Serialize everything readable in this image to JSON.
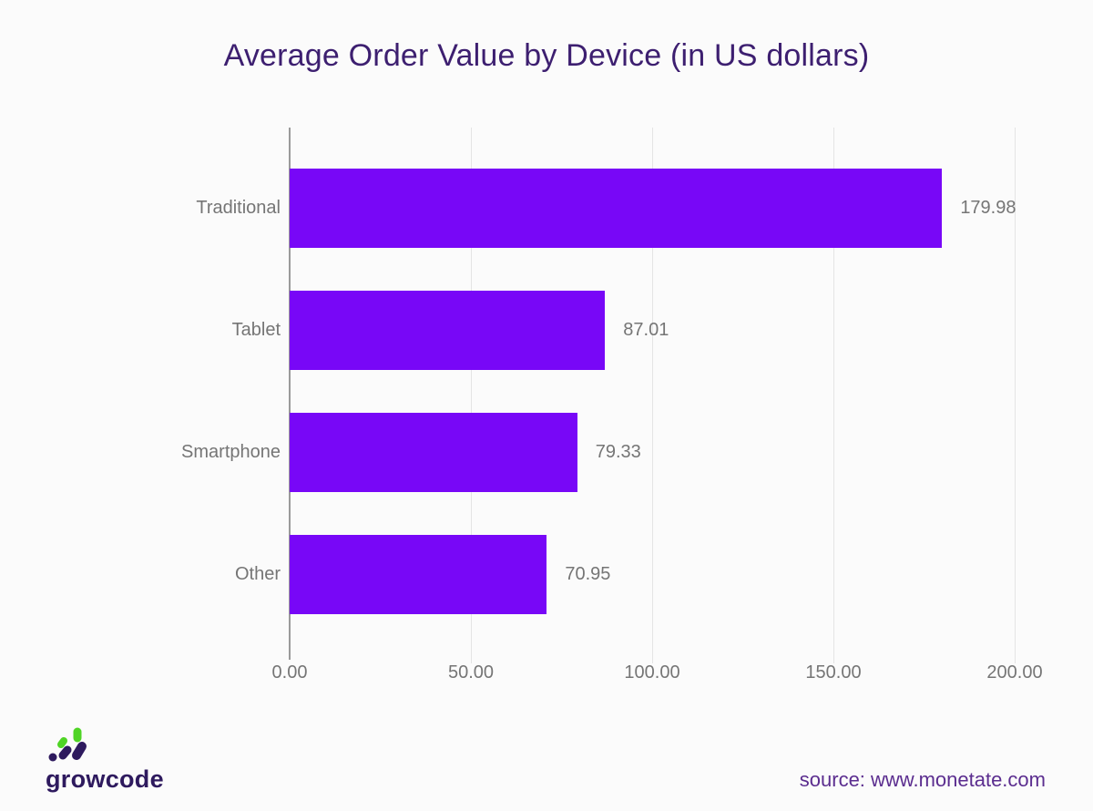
{
  "title": "Average Order Value by Device (in US dollars)",
  "chart_data": {
    "type": "bar",
    "orientation": "horizontal",
    "title": "Average Order Value by Device (in US dollars)",
    "categories": [
      "Traditional",
      "Tablet",
      "Smartphone",
      "Other"
    ],
    "values": [
      179.98,
      87.01,
      79.33,
      70.95
    ],
    "value_labels": [
      "179.98",
      "87.01",
      "79.33",
      "70.95"
    ],
    "x_ticks": [
      "0.00",
      "50.00",
      "100.00",
      "150.00",
      "200.00"
    ],
    "xlim": [
      0,
      200
    ],
    "grid": true,
    "legend": "none",
    "bar_color": "#7807f7"
  },
  "footer": {
    "logo_text": "growcode",
    "source_text": "source: www.monetate.com"
  },
  "colors": {
    "background": "#fbfbfb",
    "title": "#3d1f70",
    "bar": "#7807f7",
    "axis_line": "#9a9a9a",
    "gridline": "#e4e4e4",
    "labels": "#757575",
    "source": "#5b2d8f",
    "logo_purple": "#2e1a5e",
    "logo_green": "#4fd425"
  }
}
